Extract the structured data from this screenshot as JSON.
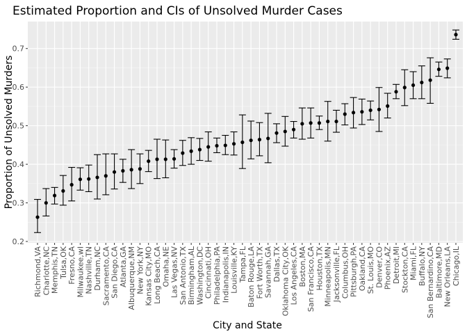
{
  "chart_data": {
    "type": "scatter",
    "title": "Estimated Proportion and CIs of Unsolved Murder Cases",
    "xlabel": "City and State",
    "ylabel": "Proportion of Unsolved Murders",
    "ylim": [
      0.2,
      0.75
    ],
    "yticks": [
      0.2,
      0.3,
      0.4,
      0.5,
      0.6,
      0.7
    ],
    "ytick_labels": [
      "0.2",
      "0.3",
      "0.4",
      "0.5",
      "0.6",
      "0.7"
    ],
    "grid": true,
    "panel_color": "#ebebeb",
    "point_color": "#000000",
    "error_bar_color": "#000000",
    "categories": [
      "Richmond,VA",
      "Charlotte,NC",
      "Memphis,TN",
      "Tulsa,OK",
      "Fresno,CA",
      "Milwaukee,wI",
      "Nashville,TN",
      "Durham,NC",
      "Sacramento,CA",
      "San Diego,CA",
      "Atlanta,GA",
      "Albuquerque,NM",
      "New York,NY",
      "Kansas City,MO",
      "Long Beach,CA",
      "Omaha,NE",
      "Las Vegas,NV",
      "San Antonio,TX",
      "Birmingham,AL",
      "Washington,DC",
      "Cincinnati,OH",
      "Philadelphia,PA",
      "Indianapolis,IN",
      "Louisville,KY",
      "Tampa,FL",
      "Baton Rouge,LA",
      "Fort Worth,TX",
      "Savannah,GA",
      "Dallas,TX",
      "Oklahoma City,OK",
      "Los Angeles,CA",
      "Boston,MA",
      "San Francisco,CA",
      "Houston,TX",
      "Minneapolis,MN",
      "Jacksonville,FL",
      "Columbus,OH",
      "Pittsburgh,PA",
      "Oakland,CA",
      "St. Louis,MO",
      "Denver,CO",
      "Phoenix,AZ",
      "Detroit,MI",
      "Stockton,CA",
      "Miami,FL",
      "Buffalo,NY",
      "San Bernardino,CA",
      "Baltimore,MD",
      "New Orleans,LA",
      "Chicago,IL"
    ],
    "estimate": [
      0.263,
      0.3,
      0.319,
      0.331,
      0.347,
      0.361,
      0.362,
      0.366,
      0.37,
      0.38,
      0.383,
      0.386,
      0.388,
      0.408,
      0.413,
      0.413,
      0.414,
      0.429,
      0.434,
      0.438,
      0.445,
      0.448,
      0.449,
      0.453,
      0.457,
      0.462,
      0.464,
      0.467,
      0.481,
      0.485,
      0.49,
      0.505,
      0.507,
      0.507,
      0.511,
      0.511,
      0.53,
      0.534,
      0.536,
      0.54,
      0.542,
      0.551,
      0.588,
      0.599,
      0.605,
      0.612,
      0.618,
      0.646,
      0.649,
      0.736
    ],
    "ci_low": [
      0.223,
      0.266,
      0.297,
      0.294,
      0.305,
      0.333,
      0.329,
      0.31,
      0.321,
      0.336,
      0.353,
      0.337,
      0.35,
      0.381,
      0.363,
      0.365,
      0.39,
      0.397,
      0.4,
      0.41,
      0.408,
      0.43,
      0.425,
      0.424,
      0.389,
      0.414,
      0.422,
      0.404,
      0.456,
      0.447,
      0.468,
      0.465,
      0.468,
      0.49,
      0.46,
      0.483,
      0.502,
      0.494,
      0.503,
      0.515,
      0.485,
      0.52,
      0.57,
      0.552,
      0.57,
      0.57,
      0.558,
      0.628,
      0.624,
      0.724
    ],
    "ci_high": [
      0.309,
      0.337,
      0.34,
      0.371,
      0.392,
      0.391,
      0.398,
      0.425,
      0.427,
      0.427,
      0.413,
      0.438,
      0.427,
      0.436,
      0.465,
      0.463,
      0.438,
      0.462,
      0.469,
      0.467,
      0.484,
      0.468,
      0.475,
      0.484,
      0.528,
      0.512,
      0.508,
      0.532,
      0.505,
      0.524,
      0.511,
      0.546,
      0.546,
      0.525,
      0.563,
      0.54,
      0.557,
      0.573,
      0.569,
      0.564,
      0.599,
      0.584,
      0.607,
      0.645,
      0.64,
      0.655,
      0.676,
      0.665,
      0.673,
      0.748
    ]
  }
}
